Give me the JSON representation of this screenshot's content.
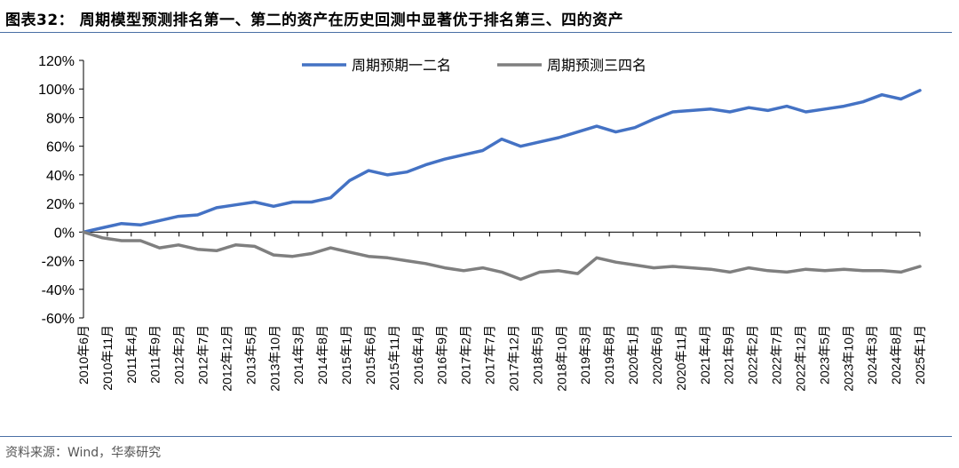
{
  "figure_title": "图表32：  周期模型预测排名第一、第二的资产在历史回测中显著优于排名第三、四的资产",
  "source": "资料来源：Wind，华泰研究",
  "colors": {
    "series1": "#4472C4",
    "series2": "#7F7F7F",
    "rule": "#4a6fa5"
  },
  "chart_data": {
    "type": "line",
    "title": "",
    "xlabel": "",
    "ylabel": "",
    "ylim": [
      -0.6,
      1.2
    ],
    "y_ticks": [
      1.2,
      1.0,
      0.8,
      0.6,
      0.4,
      0.2,
      0.0,
      -0.2,
      -0.4,
      -0.6
    ],
    "y_tick_labels": [
      "120%",
      "100%",
      "80%",
      "60%",
      "40%",
      "20%",
      "0%",
      "-20%",
      "-40%",
      "-60%"
    ],
    "x_tick_labels": [
      "2010年6月",
      "2010年11月",
      "2011年4月",
      "2011年9月",
      "2012年2月",
      "2012年7月",
      "2012年12月",
      "2013年5月",
      "2013年10月",
      "2014年3月",
      "2014年8月",
      "2015年1月",
      "2015年6月",
      "2015年11月",
      "2016年4月",
      "2016年9月",
      "2017年2月",
      "2017年7月",
      "2017年12月",
      "2018年5月",
      "2018年10月",
      "2019年3月",
      "2019年8月",
      "2020年1月",
      "2020年6月",
      "2020年11月",
      "2021年4月",
      "2021年9月",
      "2022年2月",
      "2022年7月",
      "2022年12月",
      "2023年5月",
      "2023年10月",
      "2024年3月",
      "2024年8月",
      "2025年1月"
    ],
    "grid": false,
    "legend_position": "top-center",
    "series": [
      {
        "name": "周期预期一二名",
        "values": [
          0.0,
          0.03,
          0.06,
          0.05,
          0.08,
          0.11,
          0.12,
          0.17,
          0.19,
          0.21,
          0.18,
          0.21,
          0.21,
          0.24,
          0.36,
          0.43,
          0.4,
          0.42,
          0.47,
          0.51,
          0.54,
          0.57,
          0.65,
          0.6,
          0.63,
          0.66,
          0.7,
          0.74,
          0.7,
          0.73,
          0.79,
          0.84,
          0.85,
          0.86,
          0.84,
          0.87,
          0.85,
          0.88,
          0.84,
          0.86,
          0.88,
          0.91,
          0.96,
          0.93,
          0.99
        ]
      },
      {
        "name": "周期预测三四名",
        "values": [
          0.0,
          -0.04,
          -0.06,
          -0.06,
          -0.11,
          -0.09,
          -0.12,
          -0.13,
          -0.09,
          -0.1,
          -0.16,
          -0.17,
          -0.15,
          -0.11,
          -0.14,
          -0.17,
          -0.18,
          -0.2,
          -0.22,
          -0.25,
          -0.27,
          -0.25,
          -0.28,
          -0.33,
          -0.28,
          -0.27,
          -0.29,
          -0.18,
          -0.21,
          -0.23,
          -0.25,
          -0.24,
          -0.25,
          -0.26,
          -0.28,
          -0.25,
          -0.27,
          -0.28,
          -0.26,
          -0.27,
          -0.26,
          -0.27,
          -0.27,
          -0.28,
          -0.24
        ]
      }
    ]
  }
}
